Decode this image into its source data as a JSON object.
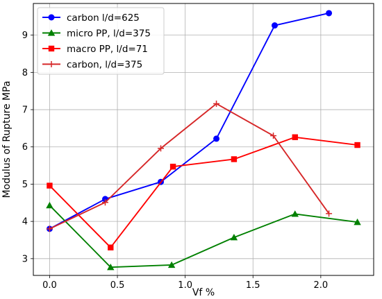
{
  "chart_data": {
    "type": "line",
    "title": "",
    "xlabel": "Vf %",
    "ylabel": "Modulus of Rupture MPa",
    "xlim": [
      -0.12,
      2.39
    ],
    "ylim": [
      2.55,
      9.85
    ],
    "xticks": [
      "0.0",
      "0.5",
      "1.0",
      "1.5",
      "2.0"
    ],
    "xtick_values": [
      0.0,
      0.5,
      1.0,
      1.5,
      2.0
    ],
    "yticks": [
      "3",
      "4",
      "5",
      "6",
      "7",
      "8",
      "9"
    ],
    "ytick_values": [
      3,
      4,
      5,
      6,
      7,
      8,
      9
    ],
    "grid": true,
    "legend_position": "upper-left",
    "series": [
      {
        "name": "carbon l/d=625",
        "color": "#0000ff",
        "marker": "circle",
        "x": [
          0.0,
          0.41,
          0.82,
          1.23,
          1.66,
          2.06
        ],
        "y": [
          3.8,
          4.6,
          5.06,
          6.22,
          9.26,
          9.59
        ]
      },
      {
        "name": "micro PP, l/d=375",
        "color": "#008000",
        "marker": "triangle",
        "x": [
          0.0,
          0.45,
          0.9,
          1.36,
          1.81,
          2.27
        ],
        "y": [
          4.43,
          2.77,
          2.83,
          3.57,
          4.2,
          3.98
        ]
      },
      {
        "name": "macro PP, l/d=71",
        "color": "#ff0000",
        "marker": "square",
        "x": [
          0.0,
          0.45,
          0.91,
          1.36,
          1.81,
          2.27
        ],
        "y": [
          4.96,
          3.3,
          5.47,
          5.67,
          6.26,
          6.05
        ]
      },
      {
        "name": "carbon, l/d=375",
        "color": "#d62728",
        "marker": "plus",
        "x": [
          0.0,
          0.41,
          0.82,
          1.23,
          1.65,
          2.06
        ],
        "y": [
          3.8,
          4.51,
          5.96,
          7.16,
          6.3,
          4.21
        ]
      }
    ]
  }
}
